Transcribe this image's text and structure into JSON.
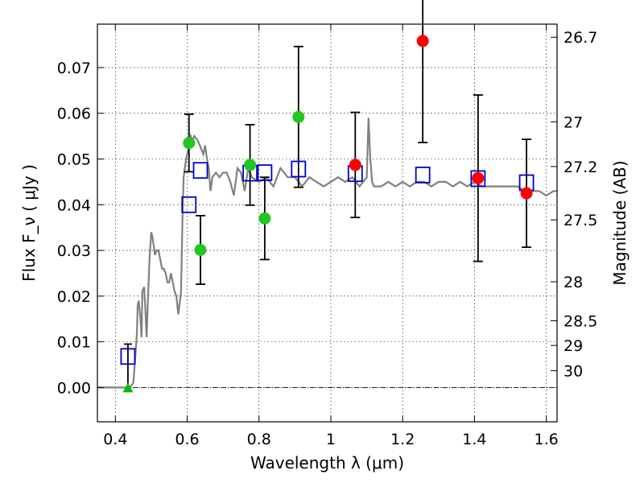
{
  "chart_data": {
    "type": "scatter",
    "title": "",
    "xlabel": "Wavelength  λ (μm)",
    "ylabel": "Flux  F_ν  ( μJy )",
    "ylabel_right": "Magnitude (AB)",
    "xlim": [
      0.35,
      1.63
    ],
    "ylim": [
      -0.0075,
      0.0795
    ],
    "grid": true,
    "legend": "none",
    "x_ticks": [
      0.4,
      0.6,
      0.8,
      1.0,
      1.2,
      1.4,
      1.6
    ],
    "x_tick_labels": [
      "0.4",
      "0.6",
      "0.8",
      "1",
      "1.2",
      "1.4",
      "1.6"
    ],
    "y_ticks": [
      0.0,
      0.01,
      0.02,
      0.03,
      0.04,
      0.05,
      0.06,
      0.07
    ],
    "y_tick_labels": [
      "0.00",
      "0.01",
      "0.02",
      "0.03",
      "0.04",
      "0.05",
      "0.06",
      "0.07"
    ],
    "right_ticks": [
      {
        "label": "26.7",
        "flux": 0.07664
      },
      {
        "label": "27",
        "flux": 0.05813
      },
      {
        "label": "27.2",
        "flux": 0.04835
      },
      {
        "label": "27.5",
        "flux": 0.03668
      },
      {
        "label": "28",
        "flux": 0.02314
      },
      {
        "label": "28.5",
        "flux": 0.0146
      },
      {
        "label": "29",
        "flux": 0.00921
      },
      {
        "label": "30",
        "flux": 0.00367
      }
    ],
    "colors": {
      "model": "#808080",
      "green": "#1fc71f",
      "red": "#ff0000",
      "blue": "#0000cc",
      "triangle": "#00bb00",
      "errorbar": "#000000"
    },
    "model_spectrum": {
      "x": [
        0.35,
        0.43,
        0.44,
        0.45,
        0.455,
        0.46,
        0.462,
        0.465,
        0.47,
        0.473,
        0.475,
        0.48,
        0.483,
        0.487,
        0.49,
        0.495,
        0.5,
        0.503,
        0.507,
        0.51,
        0.515,
        0.52,
        0.525,
        0.53,
        0.535,
        0.54,
        0.545,
        0.55,
        0.555,
        0.56,
        0.565,
        0.57,
        0.575,
        0.58,
        0.583,
        0.587,
        0.59,
        0.595,
        0.6,
        0.605,
        0.61,
        0.615,
        0.62,
        0.63,
        0.64,
        0.645,
        0.65,
        0.655,
        0.66,
        0.665,
        0.67,
        0.68,
        0.69,
        0.7,
        0.71,
        0.72,
        0.73,
        0.74,
        0.75,
        0.76,
        0.77,
        0.78,
        0.8,
        0.82,
        0.84,
        0.86,
        0.88,
        0.9,
        0.92,
        0.94,
        0.96,
        0.98,
        1.0,
        1.02,
        1.04,
        1.06,
        1.08,
        1.1,
        1.105,
        1.11,
        1.115,
        1.12,
        1.14,
        1.16,
        1.18,
        1.2,
        1.22,
        1.24,
        1.26,
        1.28,
        1.3,
        1.32,
        1.34,
        1.36,
        1.38,
        1.4,
        1.42,
        1.44,
        1.46,
        1.48,
        1.5,
        1.52,
        1.54,
        1.56,
        1.58,
        1.6,
        1.62,
        1.63
      ],
      "y": [
        0.0,
        0.0,
        0.0,
        0.001,
        0.006,
        0.012,
        0.018,
        0.019,
        0.015,
        0.011,
        0.021,
        0.022,
        0.018,
        0.011,
        0.018,
        0.028,
        0.034,
        0.033,
        0.031,
        0.029,
        0.03,
        0.03,
        0.028,
        0.026,
        0.026,
        0.025,
        0.023,
        0.023,
        0.025,
        0.023,
        0.021,
        0.02,
        0.016,
        0.019,
        0.021,
        0.037,
        0.046,
        0.049,
        0.051,
        0.053,
        0.055,
        0.054,
        0.055,
        0.054,
        0.052,
        0.051,
        0.053,
        0.05,
        0.048,
        0.043,
        0.046,
        0.047,
        0.046,
        0.047,
        0.047,
        0.045,
        0.042,
        0.048,
        0.047,
        0.043,
        0.048,
        0.046,
        0.045,
        0.046,
        0.044,
        0.048,
        0.046,
        0.046,
        0.044,
        0.046,
        0.045,
        0.044,
        0.045,
        0.046,
        0.045,
        0.046,
        0.044,
        0.046,
        0.059,
        0.05,
        0.045,
        0.044,
        0.044,
        0.045,
        0.044,
        0.045,
        0.044,
        0.045,
        0.045,
        0.044,
        0.045,
        0.045,
        0.044,
        0.045,
        0.044,
        0.045,
        0.044,
        0.044,
        0.044,
        0.044,
        0.044,
        0.044,
        0.043,
        0.043,
        0.043,
        0.042,
        0.043,
        0.043
      ]
    },
    "series": [
      {
        "marker": "circle",
        "color_key": "green",
        "points": [
          {
            "x": 0.605,
            "y": 0.0535,
            "err": 0.0063
          },
          {
            "x": 0.637,
            "y": 0.0301,
            "err": 0.0075
          },
          {
            "x": 0.775,
            "y": 0.0487,
            "err": 0.0088
          },
          {
            "x": 0.816,
            "y": 0.037,
            "err": 0.009
          },
          {
            "x": 0.91,
            "y": 0.0592,
            "err": 0.0154
          }
        ]
      },
      {
        "marker": "circle",
        "color_key": "red",
        "points": [
          {
            "x": 1.068,
            "y": 0.0487,
            "err": 0.0115
          },
          {
            "x": 1.256,
            "y": 0.0758,
            "err": 0.0222
          },
          {
            "x": 1.41,
            "y": 0.0458,
            "err": 0.0182
          },
          {
            "x": 1.545,
            "y": 0.0425,
            "err": 0.0118
          }
        ]
      },
      {
        "marker": "triangle",
        "color_key": "triangle",
        "points": [
          {
            "x": 0.435,
            "y": 0.0,
            "err_up": 0.0095
          }
        ]
      },
      {
        "marker": "open-square",
        "color_key": "blue",
        "points": [
          {
            "x": 0.435,
            "y": 0.0068
          },
          {
            "x": 0.605,
            "y": 0.04
          },
          {
            "x": 0.637,
            "y": 0.0475
          },
          {
            "x": 0.775,
            "y": 0.0469
          },
          {
            "x": 0.816,
            "y": 0.047
          },
          {
            "x": 0.91,
            "y": 0.0478
          },
          {
            "x": 1.068,
            "y": 0.0468
          },
          {
            "x": 1.256,
            "y": 0.0465
          },
          {
            "x": 1.41,
            "y": 0.0457
          },
          {
            "x": 1.545,
            "y": 0.0448
          }
        ]
      }
    ]
  }
}
